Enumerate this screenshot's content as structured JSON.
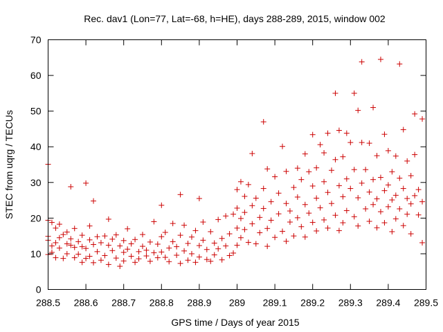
{
  "chart_data": {
    "type": "scatter",
    "title": "Rec. dav1 (Lon=77, Lat=-68, h=HE), days 288-289, 2015, window 002",
    "xlabel": "GPS time / Days of year 2015",
    "ylabel": "STEC from uqrg / TECUs",
    "xlim": [
      288.5,
      289.5
    ],
    "ylim": [
      0,
      70
    ],
    "xticks": [
      288.5,
      288.6,
      288.7,
      288.8,
      288.9,
      289,
      289.1,
      289.2,
      289.3,
      289.4,
      289.5
    ],
    "xtick_labels": [
      "288.5",
      "288.6",
      "288.7",
      "288.8",
      "288.9",
      "289",
      "289.1",
      "289.2",
      "289.3",
      "289.4",
      "289.5"
    ],
    "yticks": [
      0,
      10,
      20,
      30,
      40,
      50,
      60,
      70
    ],
    "ytick_labels": [
      "0",
      "10",
      "20",
      "30",
      "40",
      "50",
      "60",
      "70"
    ],
    "grid": false,
    "legend": "none",
    "marker": "+",
    "marker_color": "#cc0000",
    "series": [
      {
        "name": "STEC",
        "points": [
          [
            288.5,
            35.1
          ],
          [
            288.5,
            19.4
          ],
          [
            288.5,
            14.9
          ],
          [
            288.5,
            13.8
          ],
          [
            288.5,
            9.8
          ],
          [
            288.51,
            12.2
          ],
          [
            288.51,
            10.4
          ],
          [
            288.51,
            18.8
          ],
          [
            288.52,
            17.2
          ],
          [
            288.52,
            13.1
          ],
          [
            288.52,
            8.9
          ],
          [
            288.53,
            18.3
          ],
          [
            288.53,
            14.5
          ],
          [
            288.53,
            11.6
          ],
          [
            288.54,
            8.7
          ],
          [
            288.54,
            15.4
          ],
          [
            288.55,
            12.8
          ],
          [
            288.55,
            10.0
          ],
          [
            288.55,
            16.1
          ],
          [
            288.56,
            28.8
          ],
          [
            288.56,
            14.2
          ],
          [
            288.56,
            12.4
          ],
          [
            288.57,
            8.9
          ],
          [
            288.57,
            17.1
          ],
          [
            288.57,
            11.8
          ],
          [
            288.58,
            9.9
          ],
          [
            288.58,
            13.4
          ],
          [
            288.59,
            7.6
          ],
          [
            288.59,
            15.2
          ],
          [
            288.59,
            12.0
          ],
          [
            288.6,
            29.8
          ],
          [
            288.6,
            11.5
          ],
          [
            288.6,
            8.7
          ],
          [
            288.61,
            17.8
          ],
          [
            288.61,
            13.9
          ],
          [
            288.61,
            9.3
          ],
          [
            288.62,
            12.6
          ],
          [
            288.62,
            7.5
          ],
          [
            288.62,
            24.8
          ],
          [
            288.63,
            14.8
          ],
          [
            288.63,
            10.6
          ],
          [
            288.64,
            8.2
          ],
          [
            288.64,
            13.1
          ],
          [
            288.65,
            15.0
          ],
          [
            288.65,
            9.5
          ],
          [
            288.66,
            12.4
          ],
          [
            288.66,
            19.7
          ],
          [
            288.66,
            7.0
          ],
          [
            288.67,
            14.1
          ],
          [
            288.67,
            10.9
          ],
          [
            288.68,
            8.8
          ],
          [
            288.68,
            15.3
          ],
          [
            288.69,
            12.2
          ],
          [
            288.69,
            6.5
          ],
          [
            288.7,
            10.4
          ],
          [
            288.7,
            13.7
          ],
          [
            288.7,
            8.0
          ],
          [
            288.71,
            17.0
          ],
          [
            288.71,
            11.3
          ],
          [
            288.72,
            9.3
          ],
          [
            288.72,
            12.8
          ],
          [
            288.73,
            7.6
          ],
          [
            288.73,
            14.0
          ],
          [
            288.74,
            10.6
          ],
          [
            288.74,
            8.6
          ],
          [
            288.75,
            12.1
          ],
          [
            288.75,
            15.4
          ],
          [
            288.76,
            9.4
          ],
          [
            288.76,
            11.0
          ],
          [
            288.77,
            13.3
          ],
          [
            288.77,
            7.9
          ],
          [
            288.78,
            10.3
          ],
          [
            288.78,
            19.0
          ],
          [
            288.79,
            12.7
          ],
          [
            288.79,
            8.9
          ],
          [
            288.8,
            23.6
          ],
          [
            288.8,
            14.8
          ],
          [
            288.8,
            10.5
          ],
          [
            288.81,
            9.0
          ],
          [
            288.81,
            16.0
          ],
          [
            288.82,
            11.6
          ],
          [
            288.82,
            7.8
          ],
          [
            288.83,
            13.4
          ],
          [
            288.83,
            18.5
          ],
          [
            288.84,
            9.6
          ],
          [
            288.84,
            12.0
          ],
          [
            288.85,
            26.6
          ],
          [
            288.85,
            15.2
          ],
          [
            288.85,
            7.3
          ],
          [
            288.86,
            10.8
          ],
          [
            288.86,
            18.0
          ],
          [
            288.87,
            12.9
          ],
          [
            288.87,
            8.2
          ],
          [
            288.88,
            14.7
          ],
          [
            288.88,
            10.0
          ],
          [
            288.89,
            16.5
          ],
          [
            288.89,
            7.6
          ],
          [
            288.9,
            25.5
          ],
          [
            288.9,
            12.3
          ],
          [
            288.9,
            9.1
          ],
          [
            288.91,
            18.9
          ],
          [
            288.91,
            13.8
          ],
          [
            288.92,
            8.4
          ],
          [
            288.92,
            11.2
          ],
          [
            288.93,
            16.2
          ],
          [
            288.93,
            7.9
          ],
          [
            288.94,
            13.0
          ],
          [
            288.94,
            9.7
          ],
          [
            288.95,
            19.6
          ],
          [
            288.95,
            11.4
          ],
          [
            288.96,
            14.3
          ],
          [
            288.96,
            8.3
          ],
          [
            288.97,
            20.6
          ],
          [
            288.97,
            12.2
          ],
          [
            288.98,
            9.5
          ],
          [
            288.98,
            15.6
          ],
          [
            288.99,
            21.1
          ],
          [
            288.99,
            10.2
          ],
          [
            289.0,
            28.0
          ],
          [
            289.0,
            22.8
          ],
          [
            289.0,
            17.2
          ],
          [
            289.0,
            12.4
          ],
          [
            289.01,
            30.2
          ],
          [
            289.01,
            19.9
          ],
          [
            289.01,
            14.5
          ],
          [
            289.02,
            26.1
          ],
          [
            289.02,
            21.6
          ],
          [
            289.02,
            16.8
          ],
          [
            289.03,
            29.4
          ],
          [
            289.03,
            13.2
          ],
          [
            289.04,
            38.1
          ],
          [
            289.04,
            23.5
          ],
          [
            289.04,
            18.4
          ],
          [
            289.05,
            25.6
          ],
          [
            289.05,
            12.8
          ],
          [
            289.06,
            20.2
          ],
          [
            289.06,
            15.9
          ],
          [
            289.07,
            47.0
          ],
          [
            289.07,
            28.3
          ],
          [
            289.07,
            22.7
          ],
          [
            289.08,
            33.8
          ],
          [
            289.08,
            17.1
          ],
          [
            289.08,
            12.1
          ],
          [
            289.09,
            24.6
          ],
          [
            289.09,
            19.4
          ],
          [
            289.1,
            31.6
          ],
          [
            289.1,
            14.6
          ],
          [
            289.11,
            27.0
          ],
          [
            289.11,
            21.2
          ],
          [
            289.12,
            40.1
          ],
          [
            289.12,
            16.3
          ],
          [
            289.13,
            33.1
          ],
          [
            289.13,
            24.1
          ],
          [
            289.13,
            13.5
          ],
          [
            289.14,
            22.0
          ],
          [
            289.14,
            18.9
          ],
          [
            289.15,
            28.6
          ],
          [
            289.15,
            15.0
          ],
          [
            289.16,
            34.0
          ],
          [
            289.16,
            25.9
          ],
          [
            289.16,
            20.1
          ],
          [
            289.17,
            30.8
          ],
          [
            289.17,
            17.6
          ],
          [
            289.18,
            38.0
          ],
          [
            289.18,
            23.8
          ],
          [
            289.18,
            14.7
          ],
          [
            289.19,
            33.0
          ],
          [
            289.19,
            21.4
          ],
          [
            289.2,
            43.4
          ],
          [
            289.2,
            29.0
          ],
          [
            289.2,
            18.8
          ],
          [
            289.21,
            34.1
          ],
          [
            289.21,
            25.6
          ],
          [
            289.21,
            16.4
          ],
          [
            289.22,
            40.6
          ],
          [
            289.22,
            22.9
          ],
          [
            289.23,
            38.3
          ],
          [
            289.23,
            30.2
          ],
          [
            289.23,
            19.5
          ],
          [
            289.24,
            43.8
          ],
          [
            289.24,
            27.2
          ],
          [
            289.24,
            17.2
          ],
          [
            289.25,
            33.4
          ],
          [
            289.25,
            24.1
          ],
          [
            289.26,
            55.0
          ],
          [
            289.26,
            36.4
          ],
          [
            289.26,
            20.8
          ],
          [
            289.27,
            44.6
          ],
          [
            289.27,
            29.1
          ],
          [
            289.27,
            16.5
          ],
          [
            289.28,
            37.2
          ],
          [
            289.28,
            26.0
          ],
          [
            289.28,
            18.7
          ],
          [
            289.29,
            43.8
          ],
          [
            289.29,
            31.0
          ],
          [
            289.29,
            22.1
          ],
          [
            289.3,
            41.2
          ],
          [
            289.3,
            28.3
          ],
          [
            289.31,
            55.0
          ],
          [
            289.31,
            33.6
          ],
          [
            289.31,
            20.4
          ],
          [
            289.32,
            50.2
          ],
          [
            289.32,
            25.7
          ],
          [
            289.32,
            17.8
          ],
          [
            289.33,
            63.8
          ],
          [
            289.33,
            41.2
          ],
          [
            289.33,
            29.8
          ],
          [
            289.34,
            33.6
          ],
          [
            289.34,
            22.6
          ],
          [
            289.35,
            41.0
          ],
          [
            289.35,
            27.3
          ],
          [
            289.35,
            19.1
          ],
          [
            289.36,
            51.0
          ],
          [
            289.36,
            30.8
          ],
          [
            289.36,
            23.8
          ],
          [
            289.37,
            37.5
          ],
          [
            289.37,
            25.4
          ],
          [
            289.37,
            17.3
          ],
          [
            289.38,
            64.5
          ],
          [
            289.38,
            31.4
          ],
          [
            289.38,
            21.8
          ],
          [
            289.39,
            43.5
          ],
          [
            289.39,
            27.7
          ],
          [
            289.39,
            18.7
          ],
          [
            289.4,
            38.9
          ],
          [
            289.4,
            29.3
          ],
          [
            289.4,
            23.2
          ],
          [
            289.41,
            33.0
          ],
          [
            289.41,
            25.1
          ],
          [
            289.41,
            16.2
          ],
          [
            289.42,
            37.4
          ],
          [
            289.42,
            26.4
          ],
          [
            289.42,
            19.8
          ],
          [
            289.43,
            63.2
          ],
          [
            289.43,
            31.2
          ],
          [
            289.43,
            22.6
          ],
          [
            289.44,
            44.8
          ],
          [
            289.44,
            28.3
          ],
          [
            289.44,
            17.9
          ],
          [
            289.45,
            36.0
          ],
          [
            289.45,
            25.5
          ],
          [
            289.45,
            21.1
          ],
          [
            289.46,
            31.9
          ],
          [
            289.46,
            24.0
          ],
          [
            289.46,
            15.6
          ],
          [
            289.47,
            49.2
          ],
          [
            289.47,
            37.8
          ],
          [
            289.47,
            26.3
          ],
          [
            289.48,
            28.0
          ],
          [
            289.48,
            20.9
          ],
          [
            289.49,
            47.8
          ],
          [
            289.49,
            24.6
          ],
          [
            289.49,
            13.1
          ]
        ]
      }
    ]
  }
}
